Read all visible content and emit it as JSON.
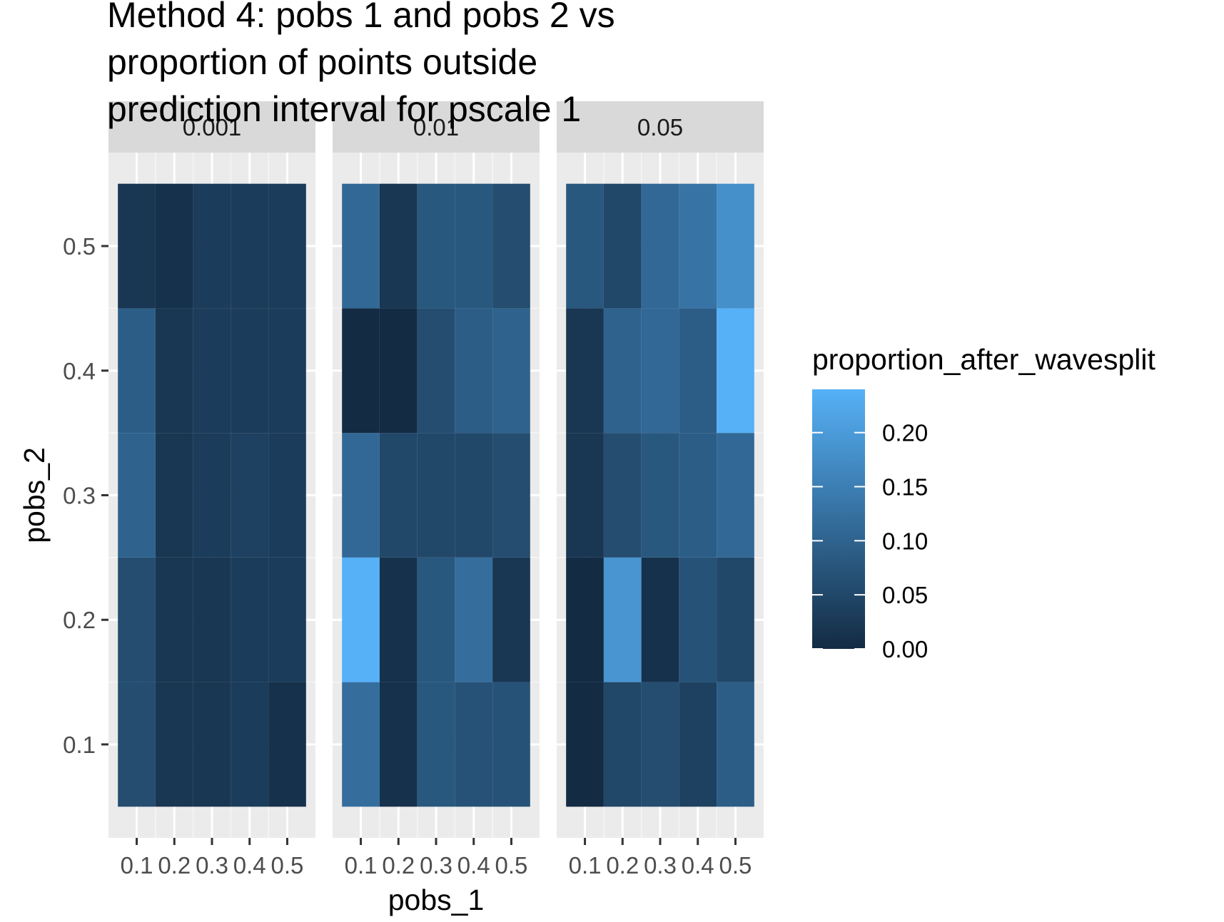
{
  "chart_data": {
    "type": "heatmap",
    "title": "Method 4: pobs 1 and pobs 2 vs\nproportion of points outside\nprediction interval for pscale 1",
    "xlabel": "pobs_1",
    "ylabel": "pobs_2",
    "x_categories": [
      0.1,
      0.2,
      0.3,
      0.4,
      0.5
    ],
    "y_categories": [
      0.1,
      0.2,
      0.3,
      0.4,
      0.5
    ],
    "x_tick_labels": [
      "0.1",
      "0.2",
      "0.3",
      "0.4",
      "0.5"
    ],
    "y_tick_labels": [
      "0.1",
      "0.2",
      "0.3",
      "0.4",
      "0.5"
    ],
    "facet_labels": [
      "0.001",
      "0.01",
      "0.05"
    ],
    "grid": true,
    "legend": {
      "title": "proportion_after_wavesplit",
      "position": "right",
      "range": [
        0,
        0.24
      ],
      "ticks": [
        0.0,
        0.05,
        0.1,
        0.15,
        0.2
      ],
      "tick_labels": [
        "0.00",
        "0.05",
        "0.10",
        "0.15",
        "0.20"
      ],
      "low_color": "#132B43",
      "high_color": "#56B1F7"
    },
    "panels": [
      {
        "facet": "0.001",
        "values_by_row_y": [
          [
            0.06,
            0.02,
            0.02,
            0.03,
            0.01
          ],
          [
            0.06,
            0.02,
            0.02,
            0.03,
            0.03
          ],
          [
            0.1,
            0.02,
            0.03,
            0.04,
            0.03
          ],
          [
            0.09,
            0.02,
            0.03,
            0.03,
            0.03
          ],
          [
            0.02,
            0.01,
            0.03,
            0.03,
            0.03
          ]
        ]
      },
      {
        "facet": "0.01",
        "values_by_row_y": [
          [
            0.12,
            0.01,
            0.08,
            0.07,
            0.07
          ],
          [
            0.24,
            0.01,
            0.08,
            0.12,
            0.02
          ],
          [
            0.11,
            0.05,
            0.05,
            0.05,
            0.06
          ],
          [
            0.0,
            0.0,
            0.06,
            0.09,
            0.1
          ],
          [
            0.11,
            0.02,
            0.08,
            0.08,
            0.06
          ]
        ]
      },
      {
        "facet": "0.05",
        "values_by_row_y": [
          [
            0.0,
            0.05,
            0.06,
            0.04,
            0.09
          ],
          [
            0.0,
            0.19,
            0.01,
            0.07,
            0.05
          ],
          [
            0.02,
            0.06,
            0.08,
            0.09,
            0.11
          ],
          [
            0.02,
            0.1,
            0.11,
            0.09,
            0.24
          ],
          [
            0.08,
            0.05,
            0.11,
            0.13,
            0.18
          ]
        ]
      }
    ]
  }
}
